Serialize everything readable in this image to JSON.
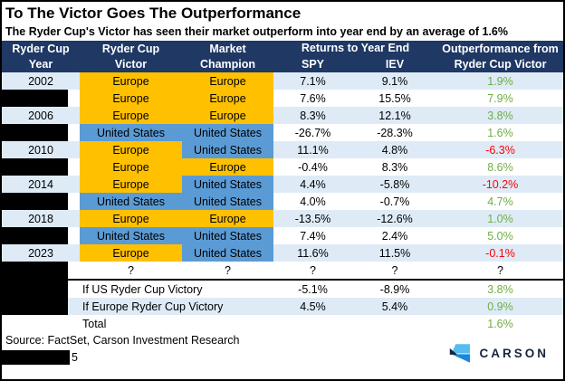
{
  "title": "To The Victor Goes The Outperformance",
  "subtitle": "The Ryder Cup's Victor has seen their market outperform into year end by an average of 1.6%",
  "chart_data": {
    "type": "table",
    "title": "To The Victor Goes The Outperformance",
    "subtitle": "The Ryder Cup's Victor has seen their market outperform into year end by an average of 1.6%",
    "header": {
      "col_year_l1": "Ryder Cup",
      "col_year_l2": "Year",
      "col_victor_l1": "Ryder Cup",
      "col_victor_l2": "Victor",
      "col_champion_l1": "Market",
      "col_champion_l2": "Champion",
      "col_returns_group": "Returns to Year End",
      "col_spy": "SPY",
      "col_iev": "IEV",
      "col_outperf_l1": "Outperformance from",
      "col_outperf_l2": "Ryder Cup Victor"
    },
    "rows": [
      {
        "year": "2002",
        "redacted": false,
        "victor": "Europe",
        "victor_side": "eu",
        "champion": "Europe",
        "champion_side": "eu",
        "spy": "7.1%",
        "iev": "9.1%",
        "outperf": "1.9%",
        "outperf_sign": "pos",
        "bg": "lb"
      },
      {
        "year": "",
        "redacted": true,
        "victor": "Europe",
        "victor_side": "eu",
        "champion": "Europe",
        "champion_side": "eu",
        "spy": "7.6%",
        "iev": "15.5%",
        "outperf": "7.9%",
        "outperf_sign": "pos",
        "bg": "w"
      },
      {
        "year": "2006",
        "redacted": false,
        "victor": "Europe",
        "victor_side": "eu",
        "champion": "Europe",
        "champion_side": "eu",
        "spy": "8.3%",
        "iev": "12.1%",
        "outperf": "3.8%",
        "outperf_sign": "pos",
        "bg": "lb"
      },
      {
        "year": "",
        "redacted": true,
        "victor": "United States",
        "victor_side": "us",
        "champion": "United States",
        "champion_side": "us",
        "spy": "-26.7%",
        "iev": "-28.3%",
        "outperf": "1.6%",
        "outperf_sign": "pos",
        "bg": "w"
      },
      {
        "year": "2010",
        "redacted": false,
        "victor": "Europe",
        "victor_side": "eu",
        "champion": "United States",
        "champion_side": "us",
        "spy": "11.1%",
        "iev": "4.8%",
        "outperf": "-6.3%",
        "outperf_sign": "neg",
        "bg": "lb"
      },
      {
        "year": "",
        "redacted": true,
        "victor": "Europe",
        "victor_side": "eu",
        "champion": "Europe",
        "champion_side": "eu",
        "spy": "-0.4%",
        "iev": "8.3%",
        "outperf": "8.6%",
        "outperf_sign": "pos",
        "bg": "w"
      },
      {
        "year": "2014",
        "redacted": false,
        "victor": "Europe",
        "victor_side": "eu",
        "champion": "United States",
        "champion_side": "us",
        "spy": "4.4%",
        "iev": "-5.8%",
        "outperf": "-10.2%",
        "outperf_sign": "neg",
        "bg": "lb"
      },
      {
        "year": "",
        "redacted": true,
        "victor": "United States",
        "victor_side": "us",
        "champion": "United States",
        "champion_side": "us",
        "spy": "4.0%",
        "iev": "-0.7%",
        "outperf": "4.7%",
        "outperf_sign": "pos",
        "bg": "w"
      },
      {
        "year": "2018",
        "redacted": false,
        "victor": "Europe",
        "victor_side": "eu",
        "champion": "Europe",
        "champion_side": "eu",
        "spy": "-13.5%",
        "iev": "-12.6%",
        "outperf": "1.0%",
        "outperf_sign": "pos",
        "bg": "lb"
      },
      {
        "year": "",
        "redacted": true,
        "victor": "United States",
        "victor_side": "us",
        "champion": "United States",
        "champion_side": "us",
        "spy": "7.4%",
        "iev": "2.4%",
        "outperf": "5.0%",
        "outperf_sign": "pos",
        "bg": "w"
      },
      {
        "year": "2023",
        "redacted": false,
        "victor": "Europe",
        "victor_side": "eu",
        "champion": "United States",
        "champion_side": "us",
        "spy": "11.6%",
        "iev": "11.5%",
        "outperf": "-0.1%",
        "outperf_sign": "neg",
        "bg": "lb"
      },
      {
        "year": "",
        "redacted": true,
        "victor": "?",
        "victor_side": "none",
        "champion": "?",
        "champion_side": "none",
        "spy": "?",
        "iev": "?",
        "outperf": "?",
        "outperf_sign": "neutral",
        "bg": "w"
      }
    ],
    "summary_rows": [
      {
        "label": "If US Ryder Cup Victory",
        "spy": "-5.1%",
        "iev": "-8.9%",
        "outperf": "3.8%",
        "outperf_sign": "pos",
        "bg": "w",
        "year_black": true
      },
      {
        "label": "If Europe Ryder Cup Victory",
        "spy": "4.5%",
        "iev": "5.4%",
        "outperf": "0.9%",
        "outperf_sign": "pos",
        "bg": "lb",
        "year_black": true
      },
      {
        "label": "Total",
        "spy": "",
        "iev": "",
        "outperf": "1.6%",
        "outperf_sign": "pos",
        "bg": "w",
        "year_black": false
      }
    ]
  },
  "source": "Source: FactSet, Carson Investment Research",
  "footer_redacted_suffix": "5",
  "logo": {
    "text": "CARSON"
  },
  "colors": {
    "navy": "#1F3864",
    "row_alt": "#DEEBF7",
    "europe_orange": "#FFC000",
    "us_blue": "#5B9BD5",
    "positive_green": "#70AD47",
    "negative_red": "#FF0000",
    "redaction_black": "#000000",
    "logo_light_blue": "#56BCF0",
    "logo_blue": "#1787DB",
    "logo_navy": "#16253F"
  }
}
